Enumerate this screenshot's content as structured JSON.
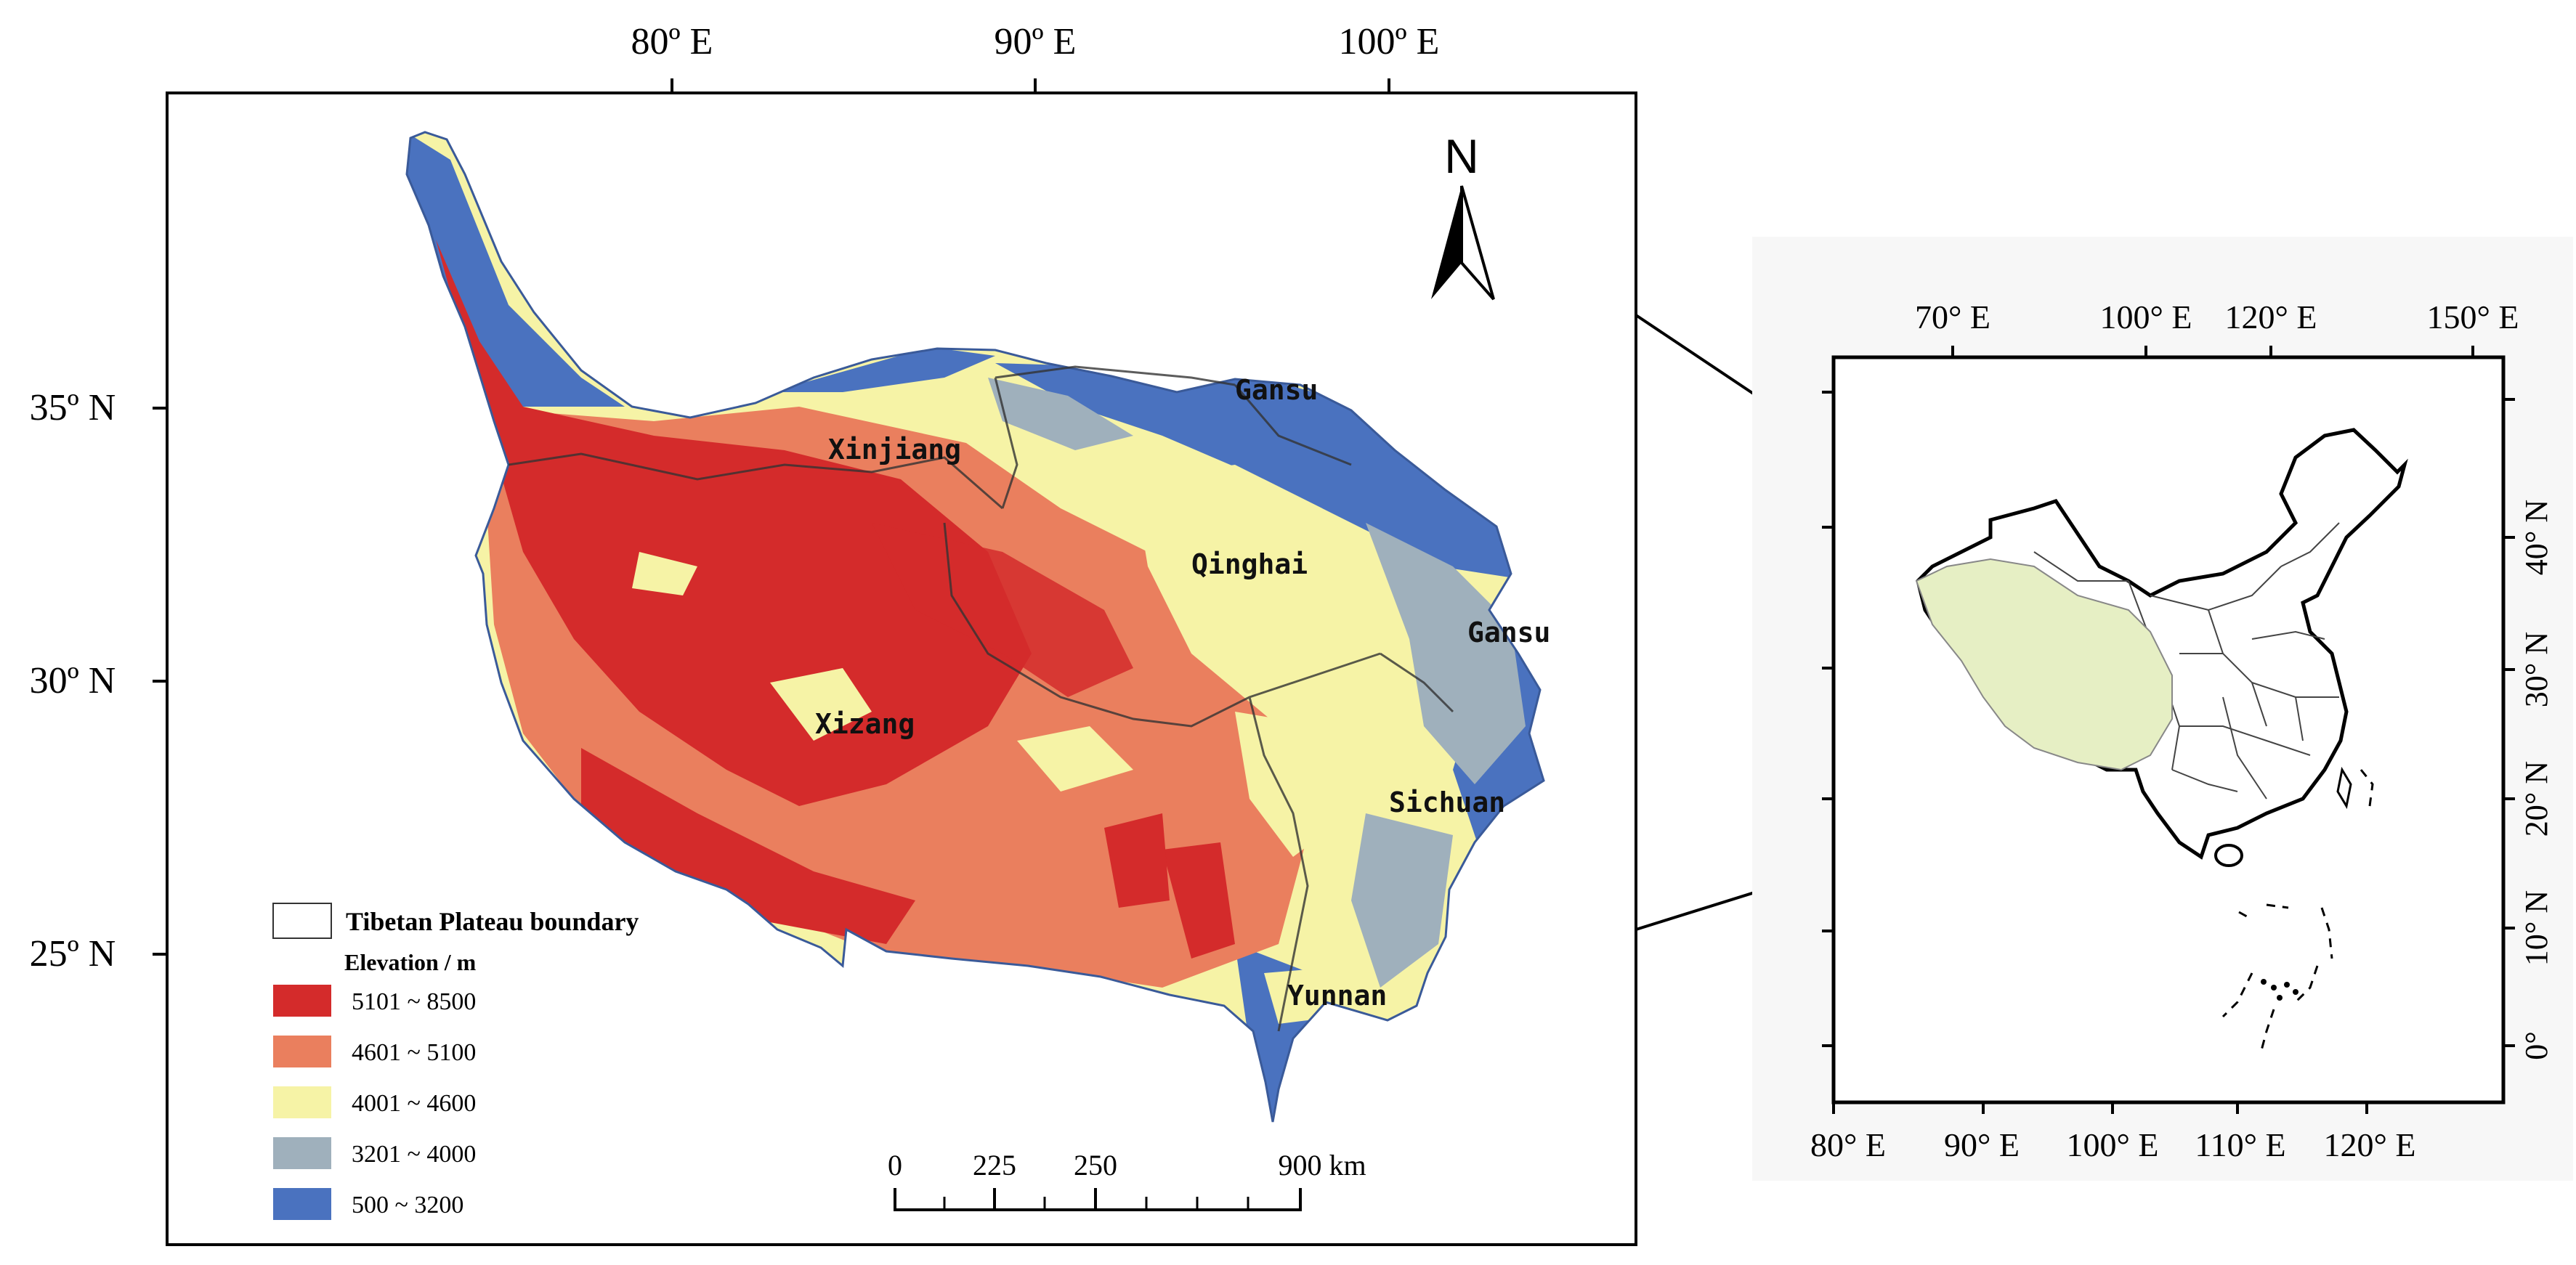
{
  "main_map": {
    "lon_labels": [
      "80º E",
      "90º E",
      "100º E"
    ],
    "lat_labels": [
      "35º N",
      "30º N",
      "25º N"
    ],
    "north_arrow": {
      "label": "N",
      "icon": "north-arrow-icon"
    },
    "provinces": [
      "Xinjiang",
      "Gansu",
      "Qinghai",
      "Gansu",
      "Xizang",
      "Sichuan",
      "Yunnan"
    ],
    "legend": {
      "boundary_label": "Tibetan Plateau boundary",
      "title": "Elevation / m",
      "classes": [
        {
          "label": "5101 ~ 8500",
          "color": "#d42b2b"
        },
        {
          "label": "4601 ~ 5100",
          "color": "#ea7f5e"
        },
        {
          "label": "4001 ~ 4600",
          "color": "#f6f3a6"
        },
        {
          "label": "3201 ~ 4000",
          "color": "#9fb0bc"
        },
        {
          "label": "500 ~ 3200",
          "color": "#4a72bf"
        }
      ]
    },
    "scale_bar": {
      "labels": [
        "0",
        "225",
        "250",
        "900 km"
      ]
    }
  },
  "inset_map": {
    "top_labels": [
      "70° E",
      "100° E",
      "120° E",
      "150° E"
    ],
    "bottom_labels": [
      "80° E",
      "90° E",
      "100° E",
      "110° E",
      "120° E"
    ],
    "right_labels": [
      "40° N",
      "30° N",
      "20° N",
      "10° N",
      "0°"
    ],
    "plateau_color": "#e6efc4"
  }
}
